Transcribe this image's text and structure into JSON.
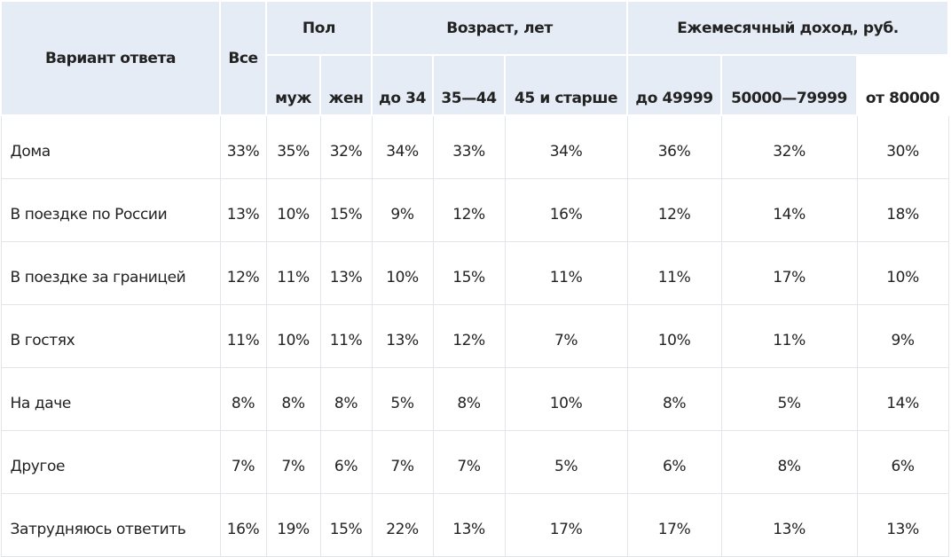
{
  "table": {
    "header_top": [
      "Вариант ответа",
      "Все",
      "Пол",
      "Возраст, лет",
      "Ежемесячный доход, руб."
    ],
    "header_sub": [
      "муж",
      "жен",
      "до 34",
      "35—44",
      "45 и старше",
      "до 49999",
      "50000—79999",
      "от 80000"
    ],
    "rows": [
      [
        "Дома",
        "33%",
        "35%",
        "32%",
        "34%",
        "33%",
        "34%",
        "36%",
        "32%",
        "30%"
      ],
      [
        "В поездке по России",
        "13%",
        "10%",
        "15%",
        "9%",
        "12%",
        "16%",
        "12%",
        "14%",
        "18%"
      ],
      [
        "В поездке за границей",
        "12%",
        "11%",
        "13%",
        "10%",
        "15%",
        "11%",
        "11%",
        "17%",
        "10%"
      ],
      [
        "В гостях",
        "11%",
        "10%",
        "11%",
        "13%",
        "12%",
        "7%",
        "10%",
        "11%",
        "9%"
      ],
      [
        "На даче",
        "8%",
        "8%",
        "8%",
        "5%",
        "8%",
        "10%",
        "8%",
        "5%",
        "14%"
      ],
      [
        "Другое",
        "7%",
        "7%",
        "6%",
        "7%",
        "7%",
        "5%",
        "6%",
        "8%",
        "6%"
      ],
      [
        "Затрудняюсь ответить",
        "16%",
        "19%",
        "15%",
        "22%",
        "13%",
        "17%",
        "17%",
        "13%",
        "13%"
      ]
    ]
  }
}
